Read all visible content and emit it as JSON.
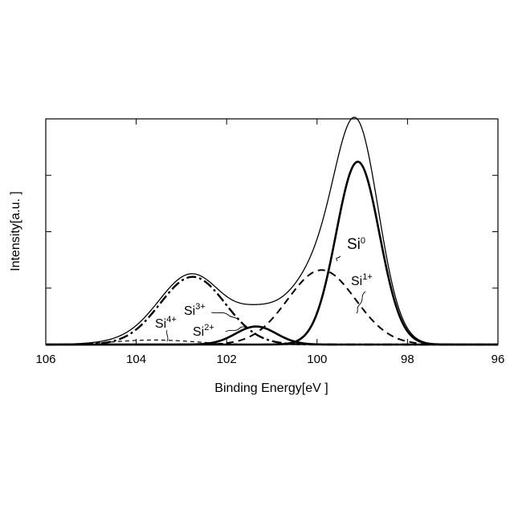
{
  "chart_data": {
    "type": "line",
    "title": "",
    "xlabel": "Binding Energy[eV ]",
    "ylabel": "Intensity[a.u. ]",
    "xlim": [
      106,
      96
    ],
    "x_reversed": true,
    "ylim": [
      0,
      1.0
    ],
    "y_tick_labels_shown": false,
    "x_ticks": [
      106,
      104,
      102,
      100,
      98,
      96
    ],
    "x_tick_labels": [
      "106",
      "104",
      "102",
      "100",
      "98",
      "96"
    ],
    "y_ticks": [
      0.25,
      0.5,
      0.75,
      1.0
    ],
    "grid": false,
    "legend": "none",
    "series": [
      {
        "name": "Si0",
        "shape": "gaussian",
        "center": 99.1,
        "sigma": 0.48,
        "height": 0.81,
        "style": "thick-solid"
      },
      {
        "name": "Si1+",
        "shape": "gaussian",
        "center": 99.9,
        "sigma": 0.75,
        "height": 0.33,
        "style": "dashed"
      },
      {
        "name": "Si2+",
        "shape": "gaussian",
        "center": 101.35,
        "sigma": 0.45,
        "height": 0.08,
        "style": "thick-solid"
      },
      {
        "name": "Si3+",
        "shape": "gaussian",
        "center": 102.75,
        "sigma": 0.72,
        "height": 0.3,
        "style": "thick-dashdot"
      },
      {
        "name": "Si4+",
        "shape": "gaussian",
        "center": 103.6,
        "sigma": 0.9,
        "height": 0.02,
        "style": "thin-dashed"
      },
      {
        "name": "Total",
        "shape": "sum",
        "style": "thin-solid"
      }
    ],
    "annotations": [
      {
        "base": "Si",
        "sup": "0",
        "font_size": 19
      },
      {
        "base": "Si",
        "sup": "1+",
        "font_size": 16
      },
      {
        "base": "Si",
        "sup": "2+",
        "font_size": 16
      },
      {
        "base": "Si",
        "sup": "3+",
        "font_size": 16
      },
      {
        "base": "Si",
        "sup": "4+",
        "font_size": 16
      }
    ]
  }
}
